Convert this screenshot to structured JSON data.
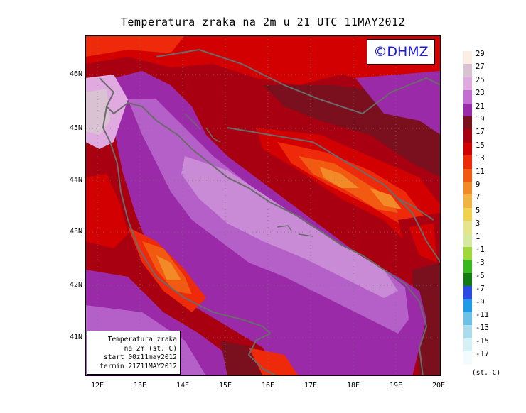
{
  "title": "Temperatura zraka na 2m u 21 UTC 11MAY2012",
  "logo_text": "©DHMZ",
  "info_box": {
    "line1": "Temperatura zraka",
    "line2": "na 2m (st. C)",
    "line3": "start 00z11may2012",
    "line4": "termin 21Z11MAY2012"
  },
  "lat_labels": [
    "46N",
    "45N",
    "44N",
    "43N",
    "42N",
    "41N"
  ],
  "lon_labels": [
    "12E",
    "13E",
    "14E",
    "15E",
    "16E",
    "17E",
    "18E",
    "19E",
    "20E"
  ],
  "legend": {
    "labels": [
      "29",
      "27",
      "25",
      "23",
      "21",
      "19",
      "17",
      "15",
      "13",
      "11",
      "9",
      "7",
      "5",
      "3",
      "1",
      "-1",
      "-3",
      "-5",
      "-7",
      "-9",
      "-11",
      "-13",
      "-15",
      "-17"
    ],
    "colors": [
      "#fbeee2",
      "#d9c2d2",
      "#e0a9e0",
      "#c46ed4",
      "#9b2aa8",
      "#7a0f1e",
      "#a80010",
      "#d20000",
      "#ee2a0a",
      "#f25a12",
      "#f38a28",
      "#f2b440",
      "#f0d24e",
      "#e6e48c",
      "#d4ea9e",
      "#9fd838",
      "#38b81e",
      "#127a12",
      "#2a4ae6",
      "#1c9ce6",
      "#6cc2e6",
      "#aadcee",
      "#d4f1f8",
      "#f2fcfe"
    ],
    "unit": "(st. C)"
  },
  "colors": {
    "border": "#6b6b6b",
    "sea_dark": "#b560c8",
    "sea_light": "#c98ad6"
  }
}
